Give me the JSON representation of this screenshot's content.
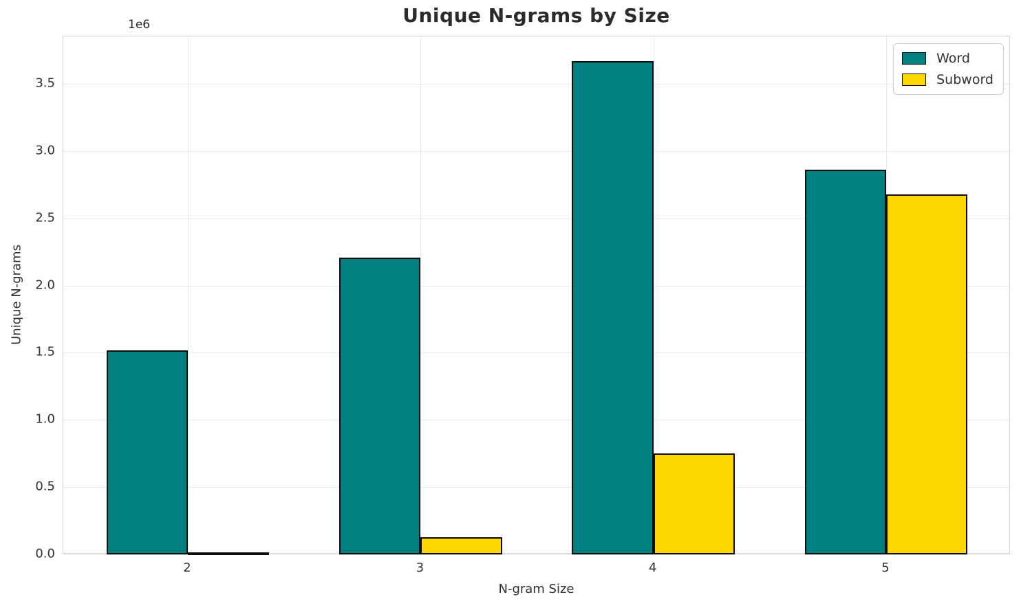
{
  "chart_data": {
    "type": "bar",
    "title": "Unique N-grams by Size",
    "xlabel": "N-gram Size",
    "ylabel": "Unique N-grams",
    "y_offset_label": "1e6",
    "categories": [
      "2",
      "3",
      "4",
      "5"
    ],
    "series": [
      {
        "name": "Word",
        "color": "#008080",
        "values": [
          1520000,
          2210000,
          3670000,
          2860000
        ]
      },
      {
        "name": "Subword",
        "color": "#FFD700",
        "values": [
          15000,
          130000,
          750000,
          2680000
        ]
      }
    ],
    "bar_width": 0.35,
    "bar_edge_color": "#0d0d0d",
    "xlim": [
      -0.535,
      3.535
    ],
    "ylim": [
      0,
      3853000
    ],
    "y_ticks": {
      "values": [
        0,
        500000,
        1000000,
        1500000,
        2000000,
        2500000,
        3000000,
        3500000
      ],
      "labels": [
        "0.0",
        "0.5",
        "1.0",
        "1.5",
        "2.0",
        "2.5",
        "3.0",
        "3.5"
      ]
    },
    "grid": true,
    "legend_position": "upper right"
  },
  "colors": {
    "grid": "#e9e9e9",
    "spine": "#d4d4d4",
    "text": "#303030",
    "background": "#ffffff"
  }
}
